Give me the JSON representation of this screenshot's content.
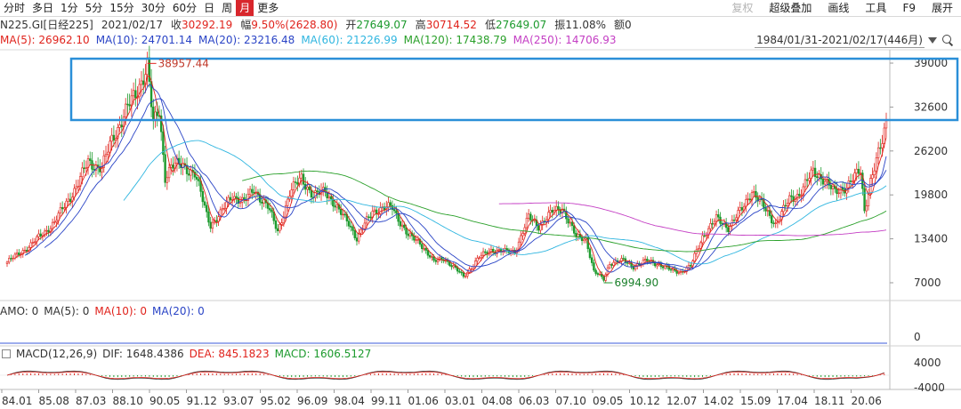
{
  "toolbar": {
    "periods": [
      "分时",
      "多日",
      "1分",
      "5分",
      "15分",
      "30分",
      "60分",
      "日",
      "周",
      "月",
      "更多"
    ],
    "active_period": "月",
    "tools": [
      "复权",
      "超级叠加",
      "画线",
      "工具",
      "F9",
      "展开"
    ]
  },
  "quote": {
    "code": "N225.GI[日经225]",
    "date": "2021/02/17",
    "close_label": "收",
    "close": "30292.19",
    "change_label": "幅",
    "change": "9.50%(2628.80)",
    "open_label": "开",
    "open": "27649.07",
    "high_label": "高",
    "high": "30714.52",
    "low_label": "低",
    "low": "27649.07",
    "amp_label": "振",
    "amp": "11.08%",
    "amount_label": "额",
    "amount": "0"
  },
  "ma_legend": [
    {
      "label": "MA(5): 26962.10",
      "color": "#e0231c"
    },
    {
      "label": "MA(10): 24701.14",
      "color": "#2a44c6"
    },
    {
      "label": "MA(20): 23216.48",
      "color": "#2a44c6"
    },
    {
      "label": "MA(60): 21226.99",
      "color": "#30b6e0"
    },
    {
      "label": "MA(120): 17438.79",
      "color": "#2aa02a"
    },
    {
      "label": "MA(250): 14706.93",
      "color": "#c43ec4"
    }
  ],
  "range": {
    "text": "1984/01/31-2021/02/17(446月)"
  },
  "amo_legend": [
    {
      "label": "AMO: 0",
      "color": "#333333"
    },
    {
      "label": "MA(5): 0",
      "color": "#333333"
    },
    {
      "label": "MA(10): 0",
      "color": "#e0231c"
    },
    {
      "label": "MA(20): 0",
      "color": "#2a44c6"
    }
  ],
  "macd_legend": [
    {
      "label": "MACD(12,26,9)",
      "color": "#333333"
    },
    {
      "label": "DIF: 1648.4386",
      "color": "#333333"
    },
    {
      "label": "DEA: 845.1823",
      "color": "#e0231c"
    },
    {
      "label": "MACD: 1606.5127",
      "color": "#1c9a2d"
    }
  ],
  "colors": {
    "up": "#e0231c",
    "down": "#1c9a2d",
    "highlight_box": "#2a8fd8"
  },
  "chart_data": {
    "type": "line",
    "x": [
      "1984-01",
      "1985-01",
      "1986-01",
      "1987-01",
      "1987-06",
      "1988-01",
      "1988-06",
      "1989-01",
      "1989-06",
      "1989-12",
      "1990-03",
      "1990-06",
      "1990-09",
      "1990-12",
      "1991-06",
      "1991-12",
      "1992-06",
      "1992-08",
      "1993-01",
      "1993-07",
      "1994-01",
      "1994-06",
      "1995-01",
      "1995-06",
      "1995-12",
      "1996-06",
      "1996-12",
      "1997-06",
      "1998-01",
      "1998-06",
      "1998-10",
      "1999-06",
      "2000-04",
      "2000-12",
      "2001-06",
      "2002-01",
      "2002-06",
      "2003-04",
      "2003-12",
      "2004-06",
      "2005-01",
      "2005-06",
      "2006-01",
      "2006-06",
      "2007-01",
      "2007-06",
      "2008-01",
      "2008-06",
      "2008-10",
      "2009-03",
      "2009-06",
      "2010-01",
      "2010-06",
      "2011-01",
      "2011-06",
      "2012-01",
      "2012-06",
      "2012-11",
      "2013-05",
      "2013-12",
      "2014-06",
      "2015-01",
      "2015-06",
      "2016-01",
      "2016-06",
      "2017-01",
      "2017-06",
      "2018-01",
      "2018-06",
      "2018-12",
      "2019-06",
      "2020-01",
      "2020-03",
      "2020-06",
      "2020-12",
      "2021-02"
    ],
    "close": [
      10000,
      12500,
      15800,
      21500,
      24600,
      23700,
      27800,
      32000,
      34300,
      38900,
      29900,
      32000,
      22500,
      24000,
      24100,
      22900,
      17000,
      15500,
      17000,
      19800,
      18700,
      20600,
      18000,
      14500,
      19900,
      22500,
      19400,
      20600,
      17300,
      15800,
      13400,
      17500,
      18000,
      13800,
      12900,
      10000,
      10600,
      7900,
      10700,
      11800,
      11500,
      11600,
      16500,
      15300,
      17300,
      18000,
      13600,
      13500,
      8600,
      7500,
      9900,
      10200,
      9400,
      10200,
      9800,
      8800,
      8600,
      9400,
      13800,
      16300,
      15100,
      17700,
      20500,
      17500,
      15600,
      19100,
      20000,
      23100,
      22300,
      20000,
      21200,
      23200,
      17500,
      22000,
      27400,
      30300
    ],
    "annotations": [
      {
        "label": "38957.44",
        "x": "1989-12",
        "y": 38957.44
      },
      {
        "label": "6994.90",
        "x": "2009-03",
        "y": 6994.9
      }
    ],
    "y_ticks": [
      "39000",
      "32600",
      "26200",
      "19800",
      "13400",
      "7000"
    ],
    "x_ticks": [
      "84.01",
      "85.08",
      "87.03",
      "88.10",
      "90.05",
      "91.12",
      "93.07",
      "95.02",
      "96.09",
      "98.04",
      "99.11",
      "01.06",
      "03.01",
      "04.08",
      "06.03",
      "07.10",
      "09.05",
      "10.12",
      "12.07",
      "14.02",
      "15.09",
      "17.04",
      "18.11",
      "20.06"
    ],
    "amo_ticks": [
      "0"
    ],
    "macd_ticks": [
      "4000",
      "-4000"
    ]
  }
}
